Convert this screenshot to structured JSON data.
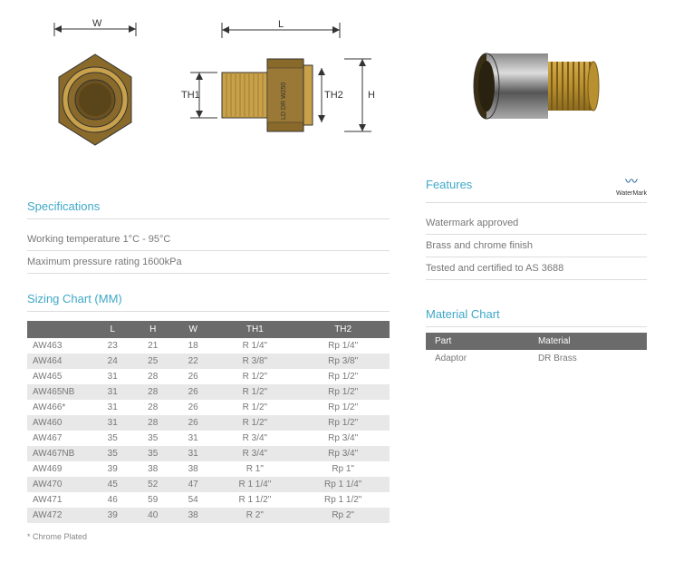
{
  "diagram": {
    "labels": {
      "W": "W",
      "L": "L",
      "TH1": "TH1",
      "TH2": "TH2",
      "H": "H"
    },
    "hex_outer_color": "#8a6a2a",
    "hex_inner_ring": "#c9a14a",
    "hex_bore": "#6b5120",
    "side_hex_color": "#8a6a2a",
    "thread_color": "#c9a14a",
    "thread_shade": "#a07d2f",
    "engraving": "LD DR  W250"
  },
  "specs": {
    "title": "Specifications",
    "lines": [
      "Working temperature 1°C - 95°C",
      "Maximum pressure rating 1600kPa"
    ]
  },
  "sizing": {
    "title": "Sizing Chart (MM)",
    "columns": [
      "",
      "L",
      "H",
      "W",
      "TH1",
      "TH2"
    ],
    "rows": [
      {
        "c": [
          "AW463",
          "23",
          "21",
          "18",
          "R 1/4\"",
          "Rp 1/4\""
        ],
        "alt": false
      },
      {
        "c": [
          "AW464",
          "24",
          "25",
          "22",
          "R 3/8\"",
          "Rp 3/8\""
        ],
        "alt": true
      },
      {
        "c": [
          "AW465",
          "31",
          "28",
          "26",
          "R 1/2\"",
          "Rp 1/2\""
        ],
        "alt": false
      },
      {
        "c": [
          "AW465NB",
          "31",
          "28",
          "26",
          "R 1/2\"",
          "Rp 1/2\""
        ],
        "alt": true
      },
      {
        "c": [
          "AW466*",
          "31",
          "28",
          "26",
          "R 1/2\"",
          "Rp 1/2\""
        ],
        "alt": false
      },
      {
        "c": [
          "AW460",
          "31",
          "28",
          "26",
          "R 1/2\"",
          "Rp 1/2\""
        ],
        "alt": true
      },
      {
        "c": [
          "AW467",
          "35",
          "35",
          "31",
          "R 3/4\"",
          "Rp 3/4\""
        ],
        "alt": false
      },
      {
        "c": [
          "AW467NB",
          "35",
          "35",
          "31",
          "R 3/4\"",
          "Rp 3/4\""
        ],
        "alt": true
      },
      {
        "c": [
          "AW469",
          "39",
          "38",
          "38",
          "R 1\"",
          "Rp 1\""
        ],
        "alt": false
      },
      {
        "c": [
          "AW470",
          "45",
          "52",
          "47",
          "R 1 1/4\"",
          "Rp 1 1/4\""
        ],
        "alt": true
      },
      {
        "c": [
          "AW471",
          "46",
          "59",
          "54",
          "R 1 1/2\"",
          "Rp 1 1/2\""
        ],
        "alt": false
      },
      {
        "c": [
          "AW472",
          "39",
          "40",
          "38",
          "R 2\"",
          "Rp 2\""
        ],
        "alt": true
      }
    ],
    "footnote": "* Chrome Plated"
  },
  "features": {
    "title": "Features",
    "watermark_label": "WaterMark",
    "lines": [
      "Watermark approved",
      "Brass and chrome finish",
      "Tested and certified to AS 3688"
    ]
  },
  "material": {
    "title": "Material Chart",
    "columns": [
      "Part",
      "Material"
    ],
    "rows": [
      [
        "Adaptor",
        "DR Brass"
      ]
    ]
  }
}
